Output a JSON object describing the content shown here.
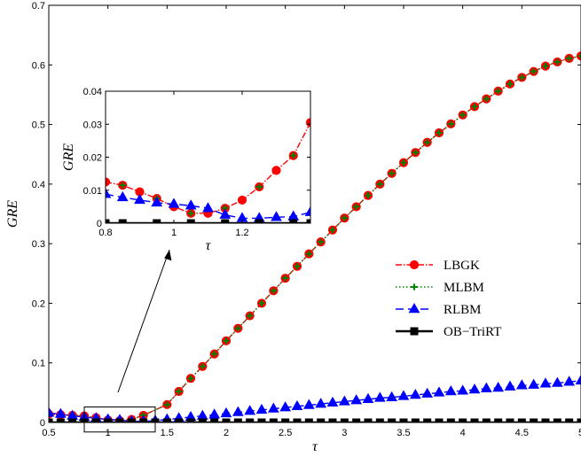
{
  "chart_data": [
    {
      "type": "line",
      "xlabel": "τ",
      "ylabel": "GRE",
      "xlim": [
        0.5,
        5
      ],
      "ylim": [
        0,
        0.7
      ],
      "xticks": [
        "0.5",
        "1",
        "1.5",
        "2",
        "2.5",
        "3",
        "3.5",
        "4",
        "4.5",
        "5"
      ],
      "yticks": [
        "0",
        "0.1",
        "0.2",
        "0.3",
        "0.4",
        "0.5",
        "0.6",
        "0.7"
      ],
      "grid": false,
      "legend_position": "center-right",
      "series": [
        {
          "name": "LBGK",
          "color": "#ff0000",
          "marker": "circle",
          "x": [
            0.5,
            0.6,
            0.7,
            0.8,
            0.9,
            1.0,
            1.1,
            1.2,
            1.3,
            1.5,
            1.6,
            1.7,
            1.8,
            1.9,
            2.0,
            2.1,
            2.2,
            2.3,
            2.4,
            2.5,
            2.6,
            2.7,
            2.8,
            2.9,
            3.0,
            3.1,
            3.2,
            3.3,
            3.4,
            3.5,
            3.6,
            3.7,
            3.8,
            3.9,
            4.0,
            4.1,
            4.2,
            4.3,
            4.4,
            4.5,
            4.6,
            4.7,
            4.8,
            4.9,
            5.0
          ],
          "y": [
            0.014,
            0.013,
            0.012,
            0.011,
            0.008,
            0.004,
            0.003,
            0.005,
            0.012,
            0.03,
            0.052,
            0.074,
            0.094,
            0.115,
            0.137,
            0.158,
            0.179,
            0.2,
            0.221,
            0.242,
            0.262,
            0.283,
            0.303,
            0.323,
            0.343,
            0.362,
            0.381,
            0.4,
            0.418,
            0.436,
            0.453,
            0.47,
            0.486,
            0.501,
            0.516,
            0.53,
            0.543,
            0.556,
            0.568,
            0.579,
            0.589,
            0.598,
            0.605,
            0.611,
            0.615
          ]
        },
        {
          "name": "MLBM",
          "color": "#008000",
          "marker": "plus",
          "x": [
            0.5,
            0.6,
            0.7,
            0.8,
            0.9,
            1.0,
            1.1,
            1.2,
            1.3,
            1.5,
            1.6,
            1.7,
            1.8,
            1.9,
            2.0,
            2.1,
            2.2,
            2.3,
            2.4,
            2.5,
            2.6,
            2.7,
            2.8,
            2.9,
            3.0,
            3.1,
            3.2,
            3.3,
            3.4,
            3.5,
            3.6,
            3.7,
            3.8,
            3.9,
            4.0,
            4.1,
            4.2,
            4.3,
            4.4,
            4.5,
            4.6,
            4.7,
            4.8,
            4.9,
            5.0
          ],
          "y": [
            0.014,
            0.013,
            0.012,
            0.011,
            0.008,
            0.004,
            0.003,
            0.005,
            0.012,
            0.03,
            0.052,
            0.074,
            0.094,
            0.115,
            0.137,
            0.158,
            0.179,
            0.2,
            0.221,
            0.242,
            0.262,
            0.283,
            0.303,
            0.323,
            0.343,
            0.362,
            0.381,
            0.4,
            0.418,
            0.436,
            0.453,
            0.47,
            0.486,
            0.501,
            0.516,
            0.53,
            0.543,
            0.556,
            0.568,
            0.579,
            0.589,
            0.598,
            0.605,
            0.611,
            0.615
          ]
        },
        {
          "name": "RLBM",
          "color": "#0000ff",
          "marker": "triangle",
          "x": [
            0.5,
            0.6,
            0.7,
            0.8,
            0.9,
            1.0,
            1.1,
            1.2,
            1.3,
            1.4,
            1.5,
            1.6,
            1.7,
            1.8,
            1.9,
            2.0,
            2.1,
            2.2,
            2.3,
            2.4,
            2.5,
            2.6,
            2.7,
            2.8,
            2.9,
            3.0,
            3.1,
            3.2,
            3.3,
            3.4,
            3.5,
            3.6,
            3.7,
            3.8,
            3.9,
            4.0,
            4.1,
            4.2,
            4.3,
            4.4,
            4.5,
            4.6,
            4.7,
            4.8,
            4.9,
            5.0
          ],
          "y": [
            0.016,
            0.014,
            0.011,
            0.009,
            0.007,
            0.005,
            0.004,
            0.002,
            0.002,
            0.003,
            0.005,
            0.007,
            0.009,
            0.011,
            0.013,
            0.015,
            0.017,
            0.019,
            0.021,
            0.023,
            0.025,
            0.027,
            0.029,
            0.031,
            0.033,
            0.035,
            0.037,
            0.039,
            0.041,
            0.042,
            0.044,
            0.046,
            0.048,
            0.05,
            0.052,
            0.053,
            0.055,
            0.057,
            0.058,
            0.06,
            0.062,
            0.063,
            0.065,
            0.066,
            0.068,
            0.07
          ]
        },
        {
          "name": "OB−TriRT",
          "color": "#000000",
          "marker": "square",
          "x": [
            0.5,
            0.6,
            0.7,
            0.8,
            0.9,
            1.0,
            1.1,
            1.2,
            1.3,
            1.4,
            1.5,
            1.6,
            1.7,
            1.8,
            1.9,
            2.0,
            2.1,
            2.2,
            2.3,
            2.4,
            2.5,
            2.6,
            2.7,
            2.8,
            2.9,
            3.0,
            3.1,
            3.2,
            3.3,
            3.4,
            3.5,
            3.6,
            3.7,
            3.8,
            3.9,
            4.0,
            4.1,
            4.2,
            4.3,
            4.4,
            4.5,
            4.6,
            4.7,
            4.8,
            4.9,
            5.0
          ],
          "y": [
            0.0,
            0.0,
            0.0,
            0.0,
            0.0,
            0.0,
            0.0,
            0.0,
            0.0,
            0.0,
            0.0,
            0.0,
            0.0,
            0.0,
            0.0,
            0.0,
            0.0,
            0.0,
            0.0,
            0.0,
            0.0,
            0.0,
            0.0,
            0.0,
            0.0,
            0.0,
            0.0,
            0.0,
            0.0,
            0.0,
            0.0,
            0.0,
            0.0,
            0.0,
            0.0,
            0.0,
            0.0,
            0.0,
            0.0,
            0.0,
            0.0,
            0.0,
            0.0,
            0.0,
            0.0,
            0.0
          ]
        }
      ]
    },
    {
      "type": "line",
      "xlabel": "τ",
      "ylabel": "GRE",
      "xlim": [
        0.8,
        1.4
      ],
      "ylim": [
        0,
        0.04
      ],
      "xticks": [
        "0.8",
        "1",
        "1.2"
      ],
      "yticks": [
        "0",
        "0.01",
        "0.02",
        "0.03",
        "0.04"
      ],
      "grid": false,
      "series": [
        {
          "name": "LBGK",
          "color": "#ff0000",
          "marker": "circle",
          "x": [
            0.8,
            0.85,
            0.9,
            0.95,
            1.0,
            1.05,
            1.1,
            1.15,
            1.2,
            1.25,
            1.3,
            1.35,
            1.4
          ],
          "y": [
            0.0125,
            0.0115,
            0.0095,
            0.0075,
            0.005,
            0.003,
            0.003,
            0.0045,
            0.007,
            0.011,
            0.016,
            0.0205,
            0.0305
          ]
        },
        {
          "name": "MLBM",
          "color": "#008000",
          "marker": "plus",
          "x": [
            0.85,
            0.95,
            1.05,
            1.15,
            1.25,
            1.35
          ],
          "y": [
            0.0115,
            0.0075,
            0.003,
            0.0045,
            0.011,
            0.0205
          ]
        },
        {
          "name": "RLBM",
          "color": "#0000ff",
          "marker": "triangle",
          "x": [
            0.8,
            0.85,
            0.9,
            0.95,
            1.0,
            1.05,
            1.1,
            1.15,
            1.2,
            1.25,
            1.3,
            1.35,
            1.4
          ],
          "y": [
            0.0088,
            0.0078,
            0.007,
            0.0062,
            0.0058,
            0.0053,
            0.0045,
            0.0025,
            0.0015,
            0.0015,
            0.0018,
            0.002,
            0.0033
          ]
        },
        {
          "name": "OB−TriRT",
          "color": "#000000",
          "marker": "square",
          "x": [
            0.8,
            0.85,
            0.95,
            1.05,
            1.15,
            1.25,
            1.35,
            1.4
          ],
          "y": [
            0,
            0,
            0,
            0,
            0,
            0,
            0,
            0
          ]
        }
      ]
    }
  ]
}
